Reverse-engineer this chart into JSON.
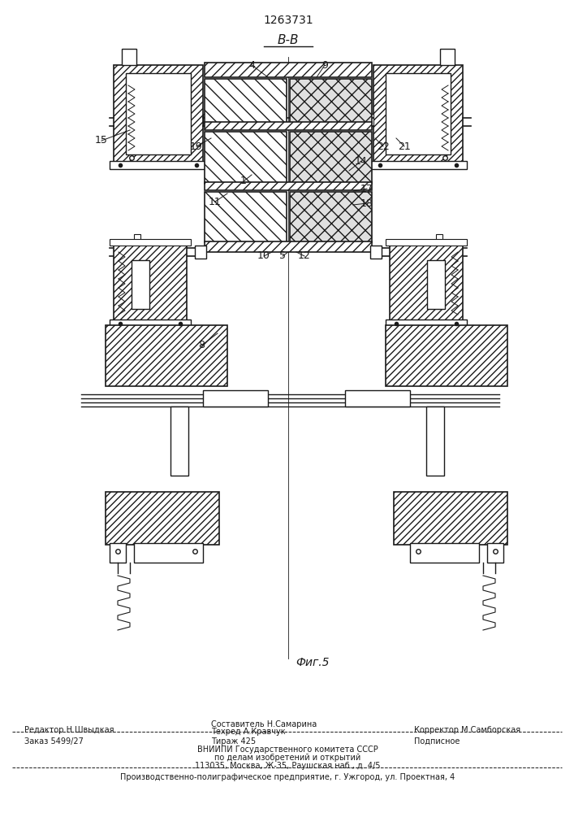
{
  "patent_number": "1263731",
  "section_label": "В-В",
  "figure_label": "Фиг.5",
  "background_color": "#ffffff",
  "line_color": "#1a1a1a",
  "footer": {
    "editor": "Редактор Н.Швыдкая",
    "composer": "Составитель Н.Самарина",
    "techred": "Техред А.Кравчук",
    "corrector": "Корректор М.Самборская",
    "order": "Заказ 5499/27",
    "copies": "Тираж 425",
    "subscription": "Подписное",
    "vniipи_line1": "ВНИИПИ Государственного комитета СССР",
    "vniipи_line2": "по делам изобретений и открытий",
    "vniipи_line3": "113035, Москва, Ж-35, Раушская наб., д. 4/5",
    "production": "Производственно-полиграфическое предприятие, г. Ужгород, ул. Проектная, 4"
  }
}
